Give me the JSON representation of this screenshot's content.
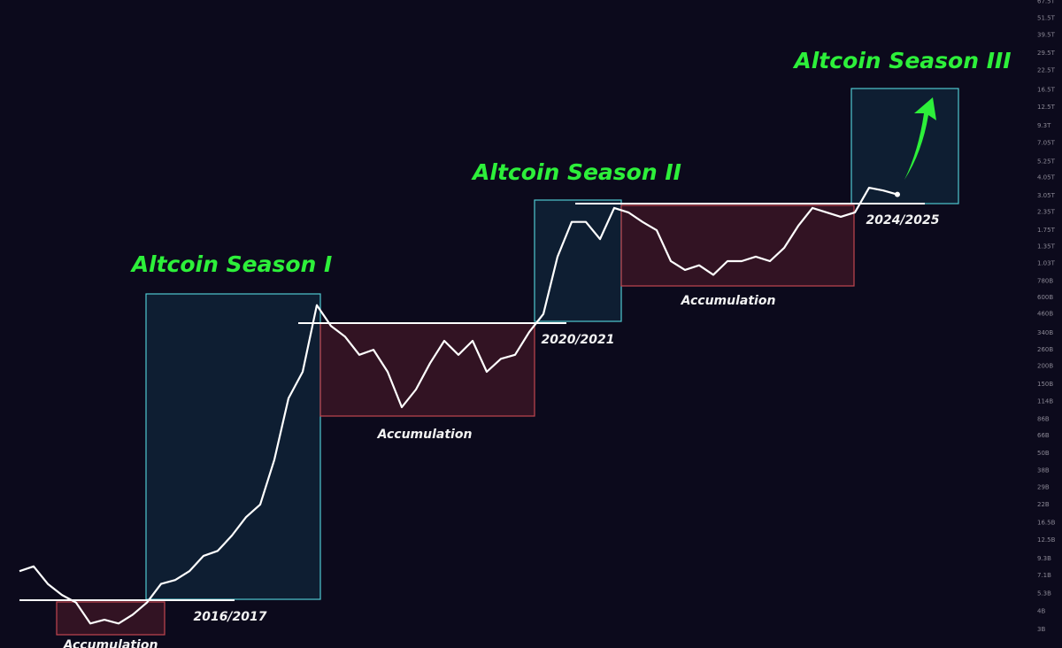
{
  "chart_data": {
    "type": "line",
    "color": "#ffffff",
    "log_scale": true,
    "grid": false,
    "values": [
      7600000000.0,
      8200000000.0,
      6200000000.0,
      5200000000.0,
      4600000000.0,
      3300000000.0,
      3500000000.0,
      3300000000.0,
      3800000000.0,
      4600000000.0,
      6200000000.0,
      6600000000.0,
      7600000000.0,
      9700000000.0,
      10500000000.0,
      13400000000.0,
      18000000000.0,
      22000000000.0,
      45000000000.0,
      120000000000.0,
      183000000000.0,
      530000000000.0,
      380000000000.0,
      320000000000.0,
      240000000000.0,
      260000000000.0,
      183000000000.0,
      104000000000.0,
      138000000000.0,
      210000000000.0,
      300000000000.0,
      240000000000.0,
      300000000000.0,
      183000000000.0,
      225000000000.0,
      240000000000.0,
      345000000000.0,
      460000000000.0,
      1150000000000.0,
      2000000000000.0,
      2000000000000.0,
      1520000000000.0,
      2500000000000.0,
      2330000000000.0,
      2000000000000.0,
      1750000000000.0,
      1070000000000.0,
      930000000000.0,
      1000000000000.0,
      860000000000.0,
      1070000000000.0,
      1070000000000.0,
      1150000000000.0,
      1070000000000.0,
      1320000000000.0,
      1880000000000.0,
      2500000000000.0,
      2330000000000.0,
      2170000000000.0,
      2330000000000.0,
      3450000000000.0,
      3300000000000.0,
      3100000000000.0
    ],
    "ylim": [
      2230000000.0,
      69000000000000.0
    ],
    "yticks": [
      {
        "value": 3000000000.0,
        "label": "3B"
      },
      {
        "value": 4000000000.0,
        "label": "4B"
      },
      {
        "value": 5300000000.0,
        "label": "5.3B"
      },
      {
        "value": 7100000000.0,
        "label": "7.1B"
      },
      {
        "value": 9300000000.0,
        "label": "9.3B"
      },
      {
        "value": 12500000000.0,
        "label": "12.5B"
      },
      {
        "value": 16500000000.0,
        "label": "16.5B"
      },
      {
        "value": 22000000000.0,
        "label": "22B"
      },
      {
        "value": 29000000000.0,
        "label": "29B"
      },
      {
        "value": 38000000000.0,
        "label": "38B"
      },
      {
        "value": 50000000000.0,
        "label": "50B"
      },
      {
        "value": 66000000000.0,
        "label": "66B"
      },
      {
        "value": 86000000000.0,
        "label": "86B"
      },
      {
        "value": 114000000000.0,
        "label": "114B"
      },
      {
        "value": 150000000000.0,
        "label": "150B"
      },
      {
        "value": 200000000000.0,
        "label": "200B"
      },
      {
        "value": 260000000000.0,
        "label": "260B"
      },
      {
        "value": 340000000000.0,
        "label": "340B"
      },
      {
        "value": 460000000000.0,
        "label": "460B"
      },
      {
        "value": 600000000000.0,
        "label": "600B"
      },
      {
        "value": 780000000000.0,
        "label": "780B"
      },
      {
        "value": 1030000000000.0,
        "label": "1.03T"
      },
      {
        "value": 1350000000000.0,
        "label": "1.35T"
      },
      {
        "value": 1750000000000.0,
        "label": "1.75T"
      },
      {
        "value": 2350000000000.0,
        "label": "2.35T"
      },
      {
        "value": 3050000000000.0,
        "label": "3.05T"
      },
      {
        "value": 4050000000000.0,
        "label": "4.05T"
      },
      {
        "value": 5250000000000.0,
        "label": "5.25T"
      },
      {
        "value": 7050000000000.0,
        "label": "7.05T"
      },
      {
        "value": 9300000000000.0,
        "label": "9.3T"
      },
      {
        "value": 12500000000000.0,
        "label": "12.5T"
      },
      {
        "value": 16500000000000.0,
        "label": "16.5T"
      },
      {
        "value": 22500000000000.0,
        "label": "22.5T"
      },
      {
        "value": 29500000000000.0,
        "label": "29.5T"
      },
      {
        "value": 39500000000000.0,
        "label": "39.5T"
      },
      {
        "value": 51500000000000.0,
        "label": "51.5T"
      },
      {
        "value": 67500000000000.0,
        "label": "67.5T"
      }
    ],
    "annotations": [
      "Altcoin Season I",
      "Altcoin Season II",
      "Altcoin Season III",
      "2016/2017",
      "2020/2021",
      "2024/2025",
      "Accumulation",
      "Accumulation",
      "Accumulation"
    ]
  }
}
